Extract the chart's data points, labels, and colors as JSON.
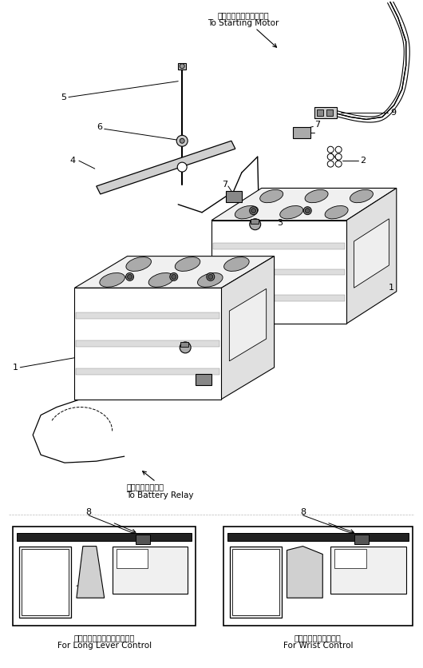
{
  "bg_color": "#ffffff",
  "line_color": "#000000",
  "fig_width": 5.3,
  "fig_height": 8.36,
  "dpi": 100,
  "top_label_jp": "スターティングモータへ",
  "top_label_en": "To Starting Motor",
  "bottom_label_jp": "バッテリリレーへ",
  "bottom_label_en": "To Battery Relay",
  "left_caption_jp": "ロングレバーコントロール用",
  "left_caption_en": "For Long Lever Control",
  "right_caption_jp": "リストコントロール用",
  "right_caption_en": "For Wrist Control"
}
